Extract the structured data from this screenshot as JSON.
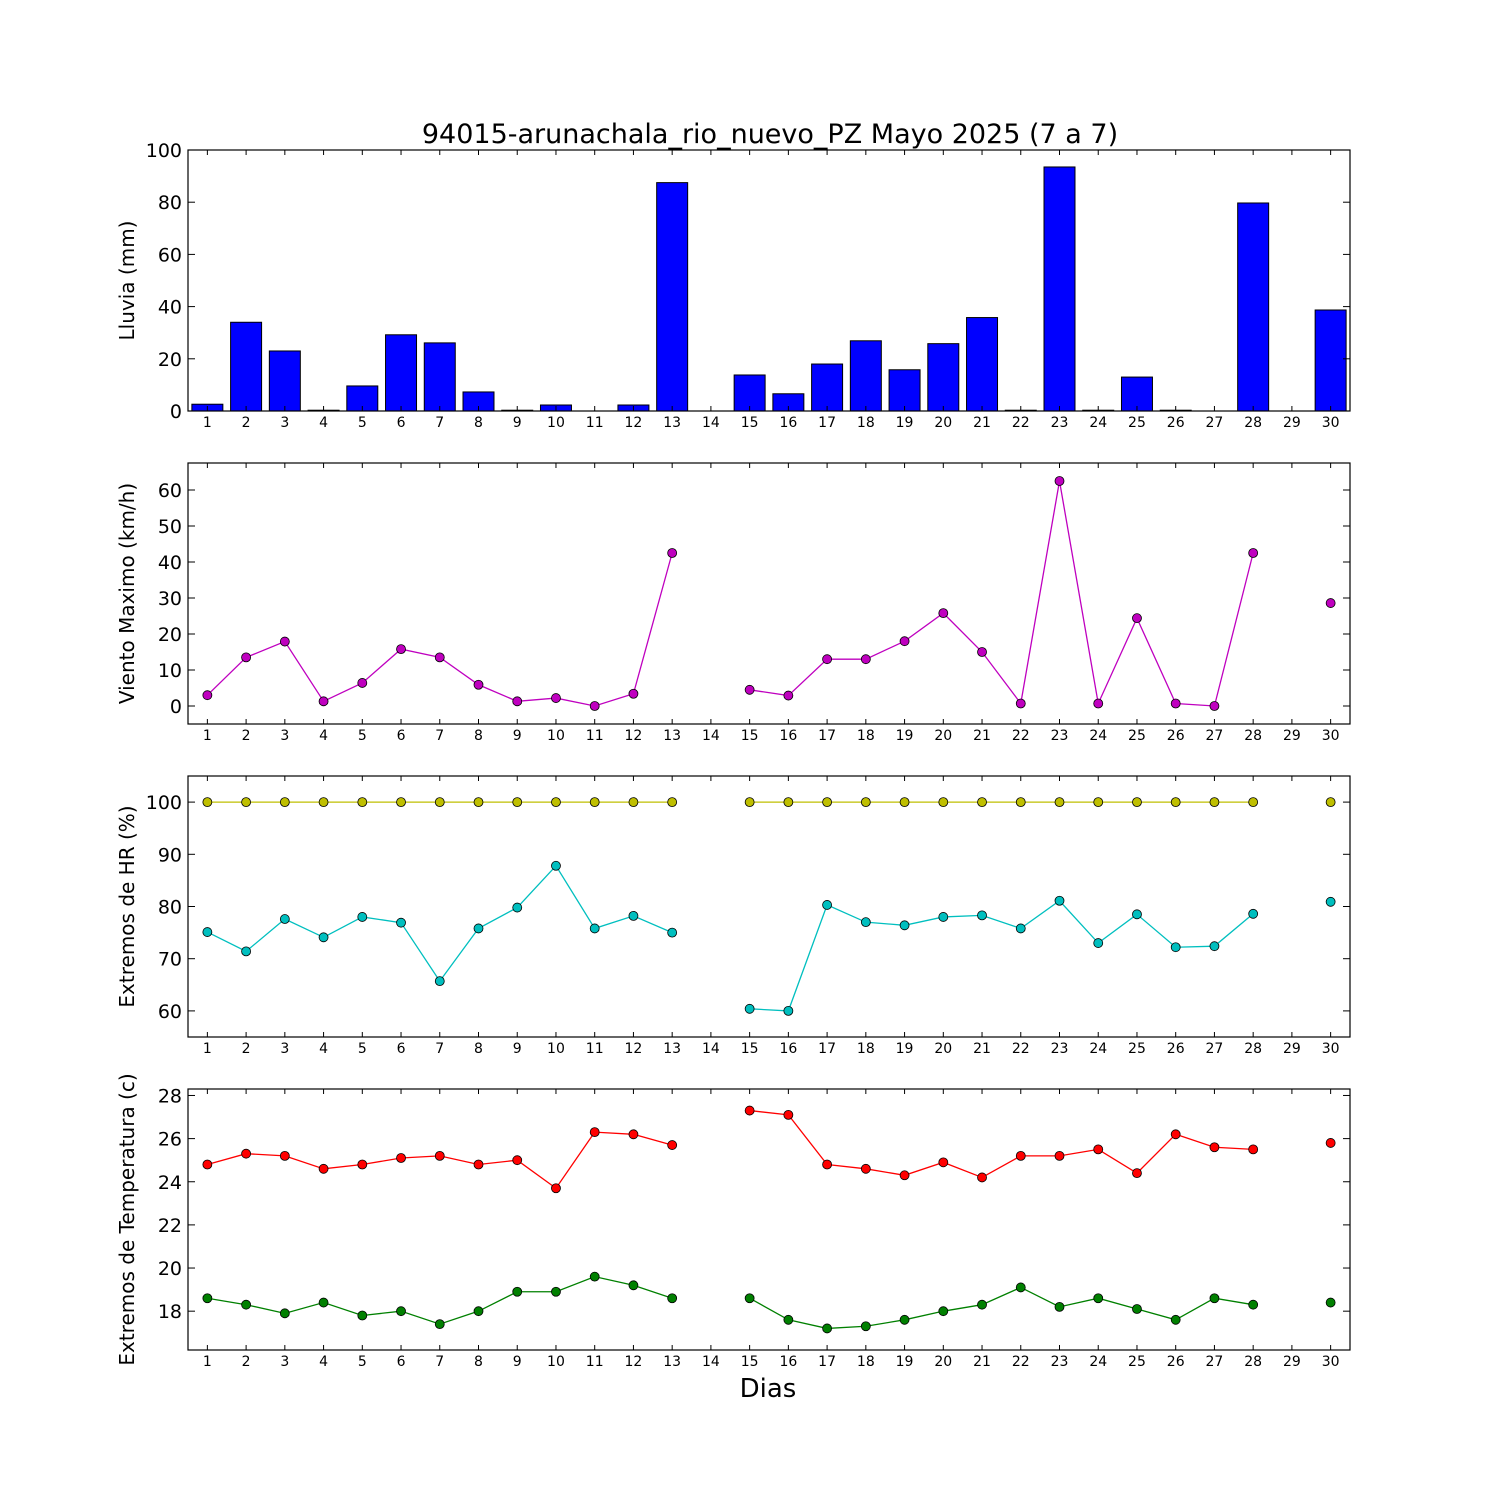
{
  "title": "94015-arunachala_rio_nuevo_PZ Mayo 2025  (7 a 7)",
  "xlabel": "Dias",
  "chart_data": [
    {
      "type": "bar",
      "ylabel": "Lluvia (mm)",
      "x": [
        1,
        2,
        3,
        4,
        5,
        6,
        7,
        8,
        9,
        10,
        11,
        12,
        13,
        14,
        15,
        16,
        17,
        18,
        19,
        20,
        21,
        22,
        23,
        24,
        25,
        26,
        27,
        28,
        29,
        30
      ],
      "ylim": [
        0,
        100
      ],
      "yticks": [
        0,
        20,
        40,
        60,
        80,
        100
      ],
      "series": [
        {
          "color": "#0000ff",
          "values": [
            2.6,
            34.0,
            23.0,
            0.3,
            9.6,
            29.2,
            26.1,
            7.3,
            0.3,
            2.3,
            0,
            2.3,
            87.5,
            null,
            13.8,
            6.6,
            18.0,
            26.9,
            15.8,
            25.8,
            35.8,
            0.3,
            93.5,
            0.3,
            13.0,
            0.3,
            0,
            79.7,
            null,
            38.7
          ]
        }
      ]
    },
    {
      "type": "line",
      "ylabel": "Viento Maximo (km/h)",
      "x": [
        1,
        2,
        3,
        4,
        5,
        6,
        7,
        8,
        9,
        10,
        11,
        12,
        13,
        14,
        15,
        16,
        17,
        18,
        19,
        20,
        21,
        22,
        23,
        24,
        25,
        26,
        27,
        28,
        29,
        30
      ],
      "ylim": [
        -5,
        67.5
      ],
      "yticks": [
        0,
        10,
        20,
        30,
        40,
        50,
        60
      ],
      "series": [
        {
          "color": "#bf00bf",
          "values": [
            3.0,
            13.5,
            17.9,
            1.3,
            6.4,
            15.8,
            13.5,
            5.9,
            1.3,
            2.2,
            0,
            3.4,
            42.5,
            null,
            4.5,
            2.9,
            13.0,
            13.0,
            18.0,
            25.8,
            15.0,
            0.7,
            62.5,
            0.7,
            24.4,
            0.7,
            0,
            42.5,
            null,
            28.6
          ]
        }
      ]
    },
    {
      "type": "line",
      "ylabel": "Extremos de HR (%)",
      "x": [
        1,
        2,
        3,
        4,
        5,
        6,
        7,
        8,
        9,
        10,
        11,
        12,
        13,
        14,
        15,
        16,
        17,
        18,
        19,
        20,
        21,
        22,
        23,
        24,
        25,
        26,
        27,
        28,
        29,
        30
      ],
      "ylim": [
        55,
        105
      ],
      "yticks": [
        60,
        70,
        80,
        90,
        100
      ],
      "series": [
        {
          "color": "#bfbf00",
          "values": [
            100,
            100,
            100,
            100,
            100,
            100,
            100,
            100,
            100,
            100,
            100,
            100,
            100,
            null,
            100,
            100,
            100,
            100,
            100,
            100,
            100,
            100,
            100,
            100,
            100,
            100,
            100,
            100,
            null,
            100
          ]
        },
        {
          "color": "#00bfbf",
          "values": [
            75.1,
            71.4,
            77.6,
            74.1,
            78.0,
            76.9,
            65.7,
            75.8,
            79.8,
            87.8,
            75.8,
            78.2,
            75.0,
            null,
            60.4,
            60.0,
            80.3,
            77.0,
            76.4,
            78.0,
            78.3,
            75.8,
            81.1,
            73.0,
            78.5,
            72.2,
            72.4,
            78.6,
            null,
            80.9
          ]
        }
      ]
    },
    {
      "type": "line",
      "ylabel": "Extremos de Temperatura (c)",
      "x": [
        1,
        2,
        3,
        4,
        5,
        6,
        7,
        8,
        9,
        10,
        11,
        12,
        13,
        14,
        15,
        16,
        17,
        18,
        19,
        20,
        21,
        22,
        23,
        24,
        25,
        26,
        27,
        28,
        29,
        30
      ],
      "ylim": [
        16.2,
        28.3
      ],
      "yticks": [
        18,
        20,
        22,
        24,
        26,
        28
      ],
      "series": [
        {
          "color": "#ff0000",
          "values": [
            24.8,
            25.3,
            25.2,
            24.6,
            24.8,
            25.1,
            25.2,
            24.8,
            25.0,
            23.7,
            26.3,
            26.2,
            25.7,
            null,
            27.3,
            27.1,
            24.8,
            24.6,
            24.3,
            24.9,
            24.2,
            25.2,
            25.2,
            25.5,
            24.4,
            26.2,
            25.6,
            25.5,
            null,
            25.8
          ]
        },
        {
          "color": "#008000",
          "values": [
            18.6,
            18.3,
            17.9,
            18.4,
            17.8,
            18.0,
            17.4,
            18.0,
            18.9,
            18.9,
            19.6,
            19.2,
            18.6,
            null,
            18.6,
            17.6,
            17.2,
            17.3,
            17.6,
            18.0,
            18.3,
            19.1,
            18.2,
            18.6,
            18.1,
            17.6,
            18.6,
            18.3,
            null,
            18.4
          ]
        }
      ]
    }
  ]
}
